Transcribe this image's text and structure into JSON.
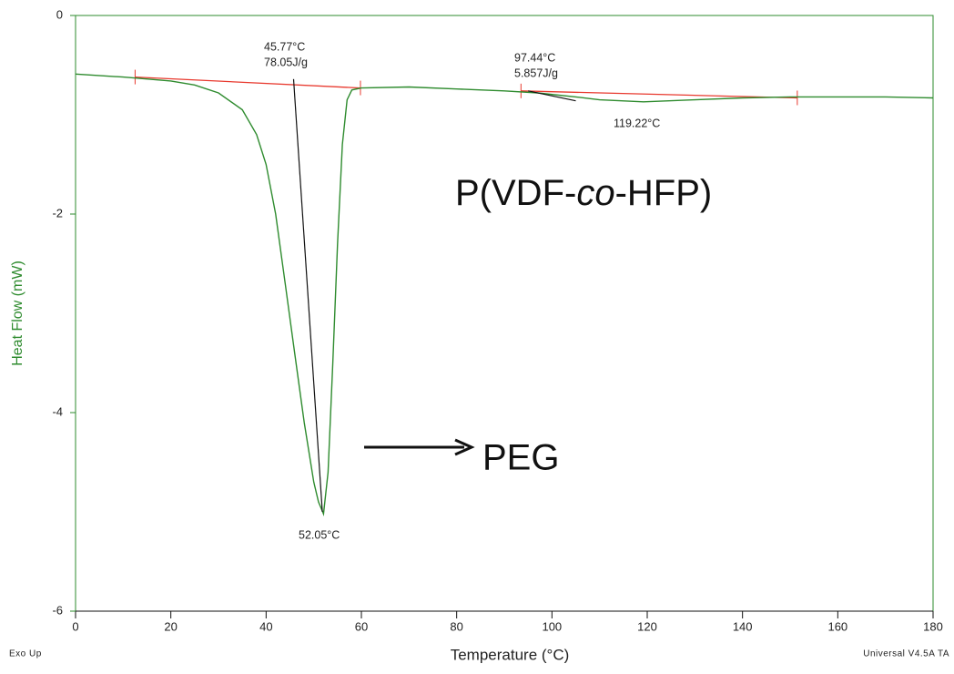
{
  "chart_data": {
    "type": "line",
    "x_label": "Temperature (°C)",
    "y_label": "Heat Flow (mW)",
    "footer_left": "Exo Up",
    "footer_right": "Universal V4.5A TA",
    "color": "#2e8b2e",
    "x": [
      0,
      10,
      20,
      25,
      30,
      35,
      38,
      40,
      42,
      44,
      46,
      48,
      50,
      51,
      52.05,
      53,
      54,
      55,
      56,
      57,
      58,
      60,
      70,
      80,
      90,
      97,
      105,
      110,
      119.22,
      130,
      140,
      150,
      160,
      170,
      180
    ],
    "values": [
      -0.59,
      -0.62,
      -0.66,
      -0.7,
      -0.78,
      -0.95,
      -1.2,
      -1.5,
      -2.0,
      -2.7,
      -3.4,
      -4.1,
      -4.7,
      -4.9,
      -5.02,
      -4.6,
      -3.5,
      -2.3,
      -1.3,
      -0.85,
      -0.75,
      -0.73,
      -0.72,
      -0.74,
      -0.76,
      -0.78,
      -0.82,
      -0.85,
      -0.87,
      -0.85,
      -0.83,
      -0.82,
      -0.82,
      -0.82,
      -0.83
    ],
    "baselines": [
      {
        "x": [
          12.5,
          59.8
        ],
        "values": [
          -0.62,
          -0.73
        ],
        "color": "#e8392e"
      },
      {
        "x": [
          93.5,
          151.5
        ],
        "values": [
          -0.76,
          -0.83
        ],
        "color": "#e8392e"
      }
    ],
    "tangents": [
      {
        "x": [
          45.77,
          51.8
        ],
        "values": [
          -0.64,
          -5.0
        ],
        "color": "#111111"
      },
      {
        "x": [
          95,
          105
        ],
        "values": [
          -0.76,
          -0.86
        ],
        "color": "#111111"
      }
    ],
    "annotations": [
      "45.77°C",
      "78.05J/g",
      "97.44°C",
      "5.857J/g",
      "119.22°C",
      "52.05°C"
    ],
    "label_parts": [
      "P(VDF-",
      "co",
      "-HFP)"
    ],
    "peg_label": "PEG",
    "xlim": [
      0,
      180
    ],
    "ylim": [
      -6,
      0
    ],
    "xticks": [
      0,
      20,
      40,
      60,
      80,
      100,
      120,
      140,
      160,
      180
    ],
    "yticks": [
      0,
      -2,
      -4,
      -6
    ]
  }
}
